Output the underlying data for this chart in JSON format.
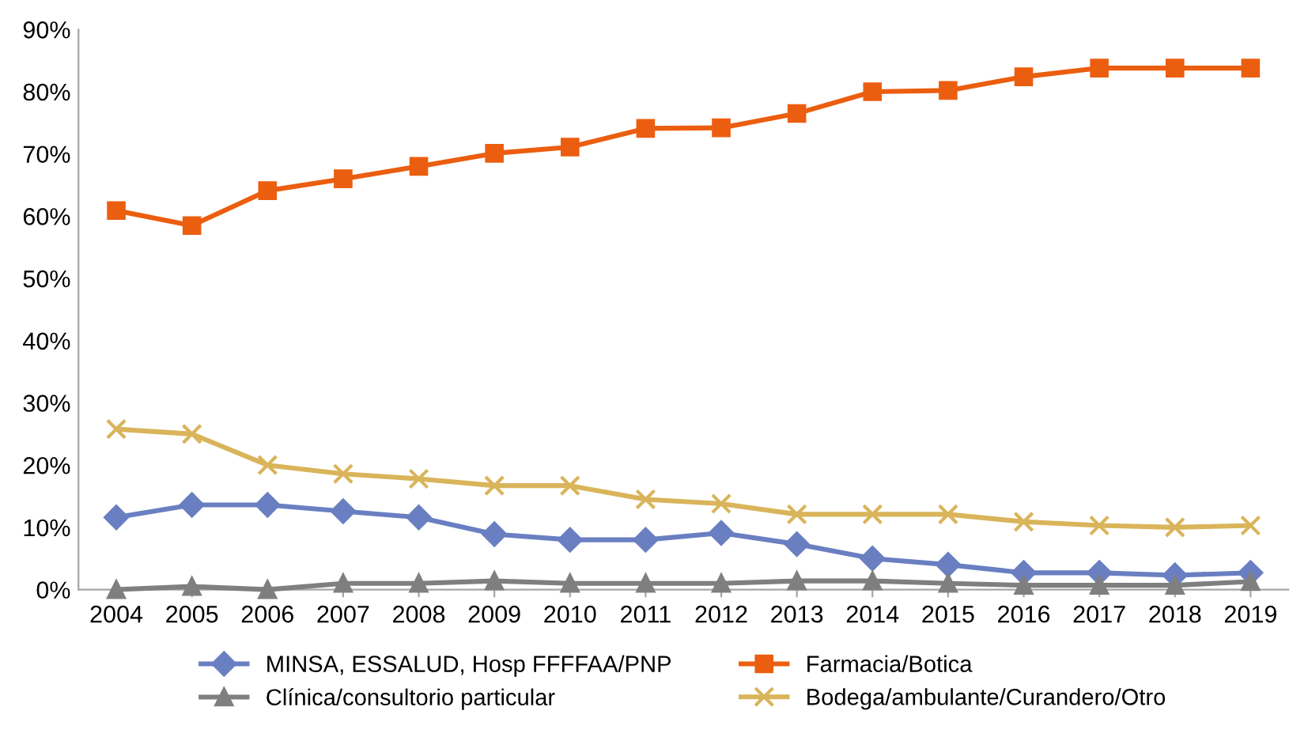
{
  "chart_data": {
    "type": "line",
    "categories": [
      "2004",
      "2005",
      "2006",
      "2007",
      "2008",
      "2009",
      "2010",
      "2011",
      "2012",
      "2013",
      "2014",
      "2015",
      "2016",
      "2017",
      "2018",
      "2019"
    ],
    "series": [
      {
        "name": "MINSA, ESSALUD, Hosp FFFFAA/PNP",
        "color": "#6a7fc1",
        "marker": "diamond",
        "values": [
          11.6,
          13.6,
          13.6,
          12.6,
          11.6,
          8.9,
          8.0,
          8.0,
          9.1,
          7.3,
          5.0,
          4.0,
          2.7,
          2.7,
          2.3,
          2.7
        ]
      },
      {
        "name": "Clínica/consultorio particular",
        "color": "#7f7f7f",
        "marker": "triangle",
        "values": [
          0,
          0.5,
          0,
          1.0,
          1.0,
          1.4,
          1.0,
          1.0,
          1.0,
          1.4,
          1.4,
          1.0,
          0.7,
          0.7,
          0.7,
          1.3
        ]
      },
      {
        "name": "Farmacia/Botica",
        "color": "#eb5e10",
        "marker": "square",
        "values": [
          60.9,
          58.5,
          64.1,
          66.0,
          68.0,
          70.1,
          71.1,
          74.1,
          74.2,
          76.5,
          80.0,
          80.2,
          82.4,
          83.8,
          83.8,
          83.8
        ]
      },
      {
        "name": "Bodega/ambulante/Curandero/Otro",
        "color": "#d9b45a",
        "marker": "cross",
        "values": [
          25.8,
          25.0,
          20.0,
          18.6,
          17.8,
          16.7,
          16.7,
          14.5,
          13.8,
          12.1,
          12.1,
          12.1,
          10.9,
          10.3,
          10.0,
          10.3
        ]
      }
    ],
    "ylim": [
      0,
      90
    ],
    "yticks": [
      {
        "value": 0,
        "label": "0%"
      },
      {
        "value": 10,
        "label": "10%"
      },
      {
        "value": 20,
        "label": "20%"
      },
      {
        "value": 30,
        "label": "30%"
      },
      {
        "value": 40,
        "label": "40%"
      },
      {
        "value": 50,
        "label": "50%"
      },
      {
        "value": 60,
        "label": "60%"
      },
      {
        "value": 70,
        "label": "70%"
      },
      {
        "value": 80,
        "label": "80%"
      },
      {
        "value": 90,
        "label": "90%"
      }
    ],
    "grid": false,
    "legend": "bottom",
    "line_style": "solid"
  }
}
